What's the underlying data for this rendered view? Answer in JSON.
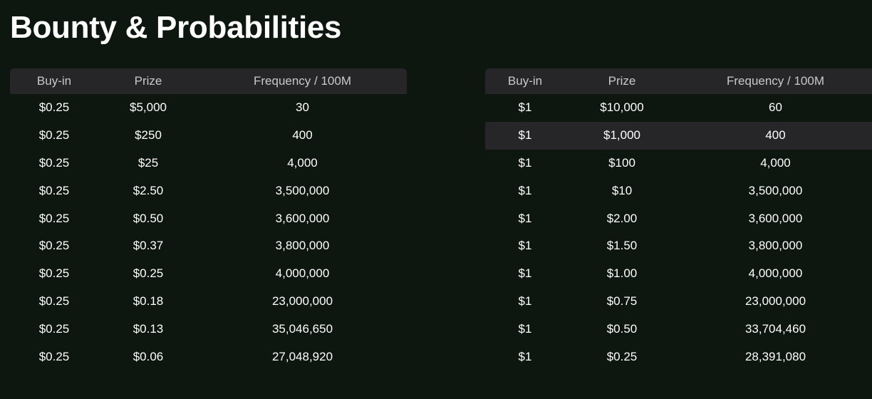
{
  "title": "Bounty & Probabilities",
  "columns": [
    "Buy-in",
    "Prize",
    "Frequency / 100M"
  ],
  "left_table": {
    "rows": [
      [
        "$0.25",
        "$5,000",
        "30"
      ],
      [
        "$0.25",
        "$250",
        "400"
      ],
      [
        "$0.25",
        "$25",
        "4,000"
      ],
      [
        "$0.25",
        "$2.50",
        "3,500,000"
      ],
      [
        "$0.25",
        "$0.50",
        "3,600,000"
      ],
      [
        "$0.25",
        "$0.37",
        "3,800,000"
      ],
      [
        "$0.25",
        "$0.25",
        "4,000,000"
      ],
      [
        "$0.25",
        "$0.18",
        "23,000,000"
      ],
      [
        "$0.25",
        "$0.13",
        "35,046,650"
      ],
      [
        "$0.25",
        "$0.06",
        "27,048,920"
      ]
    ]
  },
  "right_table": {
    "highlighted_row": 1,
    "rows": [
      [
        "$1",
        "$10,000",
        "60"
      ],
      [
        "$1",
        "$1,000",
        "400"
      ],
      [
        "$1",
        "$100",
        "4,000"
      ],
      [
        "$1",
        "$10",
        "3,500,000"
      ],
      [
        "$1",
        "$2.00",
        "3,600,000"
      ],
      [
        "$1",
        "$1.50",
        "3,800,000"
      ],
      [
        "$1",
        "$1.00",
        "4,000,000"
      ],
      [
        "$1",
        "$0.75",
        "23,000,000"
      ],
      [
        "$1",
        "$0.50",
        "33,704,460"
      ],
      [
        "$1",
        "$0.25",
        "28,391,080"
      ]
    ]
  },
  "colors": {
    "background": "#0d160f",
    "header_bg": "#262628",
    "header_text": "#c9c9cb",
    "text": "#ffffff"
  }
}
